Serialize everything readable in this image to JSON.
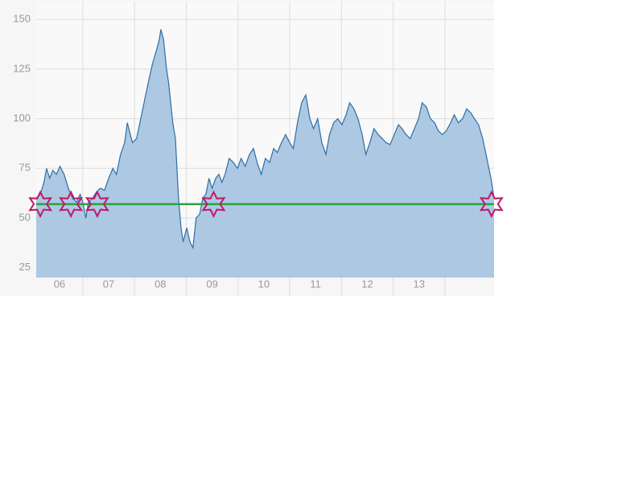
{
  "chart_data": {
    "type": "area",
    "x": [
      6.1,
      6.18,
      6.25,
      6.3,
      6.36,
      6.42,
      6.49,
      6.56,
      6.64,
      6.72,
      6.8,
      6.88,
      6.95,
      7.0,
      7.06,
      7.11,
      7.19,
      7.26,
      7.34,
      7.42,
      7.5,
      7.58,
      7.65,
      7.73,
      7.81,
      7.86,
      7.92,
      7.96,
      8.04,
      8.12,
      8.2,
      8.28,
      8.35,
      8.43,
      8.48,
      8.51,
      8.56,
      8.62,
      8.66,
      8.74,
      8.79,
      8.85,
      8.9,
      8.94,
      9.01,
      9.07,
      9.13,
      9.19,
      9.26,
      9.32,
      9.38,
      9.44,
      9.5,
      9.57,
      9.63,
      9.69,
      9.75,
      9.83,
      9.91,
      9.99,
      10.06,
      10.14,
      10.22,
      10.3,
      10.37,
      10.45,
      10.53,
      10.61,
      10.69,
      10.76,
      10.84,
      10.92,
      11.0,
      11.07,
      11.15,
      11.23,
      11.31,
      11.39,
      11.46,
      11.54,
      11.62,
      11.7,
      11.77,
      11.85,
      11.93,
      12.01,
      12.09,
      12.16,
      12.24,
      12.32,
      12.4,
      12.47,
      12.55,
      12.63,
      12.71,
      12.79,
      12.86,
      12.94,
      13.02,
      13.1,
      13.17,
      13.25,
      13.33,
      13.41,
      13.49,
      13.56,
      13.64,
      13.72,
      13.8,
      13.87,
      13.95,
      14.03,
      14.11,
      14.18,
      14.26,
      14.34,
      14.42,
      14.5,
      14.57,
      14.65,
      14.73,
      14.81,
      14.89,
      14.95
    ],
    "values": [
      60,
      62,
      68,
      75,
      70,
      74,
      72,
      76,
      72,
      65,
      60,
      58,
      62,
      58,
      50,
      58,
      60,
      63,
      65,
      64,
      70,
      75,
      72,
      82,
      88,
      98,
      92,
      88,
      90,
      100,
      110,
      120,
      128,
      135,
      140,
      145,
      140,
      125,
      118,
      98,
      90,
      60,
      45,
      38,
      45,
      38,
      35,
      50,
      52,
      60,
      62,
      70,
      65,
      70,
      72,
      68,
      72,
      80,
      78,
      75,
      80,
      76,
      82,
      85,
      78,
      72,
      80,
      78,
      85,
      83,
      88,
      92,
      88,
      85,
      98,
      108,
      112,
      100,
      95,
      100,
      88,
      82,
      92,
      98,
      100,
      97,
      102,
      108,
      105,
      100,
      92,
      82,
      88,
      95,
      92,
      90,
      88,
      87,
      92,
      97,
      95,
      92,
      90,
      95,
      100,
      108,
      106,
      100,
      98,
      94,
      92,
      94,
      98,
      102,
      98,
      100,
      105,
      103,
      100,
      97,
      90,
      80,
      70,
      60
    ],
    "color": "#2f6ea5",
    "fill": "#a9c5e0",
    "xlim": [
      6.1,
      14.95
    ],
    "ylim": [
      20,
      159
    ],
    "yticks": [
      25,
      50,
      75,
      100,
      125,
      150
    ],
    "xticks": [
      {
        "value": 6.55,
        "label": "06"
      },
      {
        "value": 7.5,
        "label": "07"
      },
      {
        "value": 8.5,
        "label": "08"
      },
      {
        "value": 9.5,
        "label": "09"
      },
      {
        "value": 10.5,
        "label": "10"
      },
      {
        "value": 11.5,
        "label": "11"
      },
      {
        "value": 12.5,
        "label": "12"
      },
      {
        "value": 13.5,
        "label": "13"
      }
    ],
    "xgrid": [
      7,
      8,
      9,
      10,
      11,
      12,
      13,
      14
    ],
    "grid": true,
    "level": 57,
    "level_color": "#2ea043",
    "markers": [
      6.18,
      6.77,
      7.28,
      9.53,
      14.9
    ],
    "marker_color": "#c0186c"
  }
}
